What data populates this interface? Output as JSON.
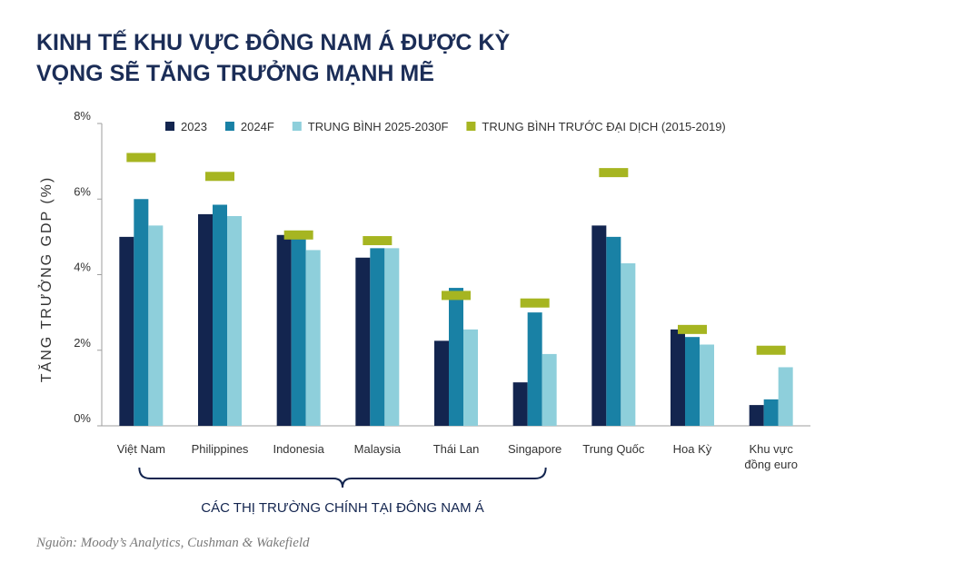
{
  "title": {
    "line1": "KINH TẾ KHU VỰC ĐÔNG NAM Á ĐƯỢC KỲ",
    "line2": "VỌNG SẼ TĂNG TRƯỞNG MẠNH MẼ"
  },
  "source": "Nguồn: Moody’s Analytics, Cushman & Wakefield",
  "bracket_label": "CÁC THỊ TRƯỜNG CHÍNH TẠI ĐÔNG NAM Á",
  "colors": {
    "s2023": "#13254f",
    "s2024": "#1981a5",
    "savg": "#8ecfdb",
    "spre": "#a6b521",
    "axis": "#9e9e9e",
    "text": "#333333",
    "title": "#1b2d57"
  },
  "chart_data": {
    "type": "bar",
    "title": "KINH TẾ KHU VỰC ĐÔNG NAM Á ĐƯỢC KỲ VỌNG SẼ TĂNG TRƯỞNG MẠNH MẼ",
    "xlabel": "",
    "ylabel": "TĂNG TRƯỞNG GDP (%)",
    "ylim": [
      0,
      8
    ],
    "yticks": [
      "0%",
      "2%",
      "4%",
      "6%",
      "8%"
    ],
    "grid": false,
    "legend_position": "top",
    "categories": [
      [
        "Việt Nam"
      ],
      [
        "Philippines"
      ],
      [
        "Indonesia"
      ],
      [
        "Malaysia"
      ],
      [
        "Thái Lan"
      ],
      [
        "Singapore"
      ],
      [
        "Trung Quốc"
      ],
      [
        "Hoa Kỳ"
      ],
      [
        "Khu vực",
        "đồng euro"
      ]
    ],
    "series": [
      {
        "name": "2023",
        "mark": "bar",
        "values": [
          5.0,
          5.6,
          5.05,
          4.45,
          2.25,
          1.15,
          5.3,
          2.55,
          0.55
        ]
      },
      {
        "name": "2024F",
        "mark": "bar",
        "values": [
          6.0,
          5.85,
          5.0,
          4.7,
          3.65,
          3.0,
          5.0,
          2.35,
          0.7
        ]
      },
      {
        "name": "TRUNG BÌNH 2025-2030F",
        "mark": "bar",
        "values": [
          5.3,
          5.55,
          4.65,
          4.7,
          2.55,
          1.9,
          4.3,
          2.15,
          1.55
        ]
      },
      {
        "name": "TRUNG BÌNH TRƯỚC ĐẠI DỊCH (2015-2019)",
        "mark": "dash",
        "values": [
          7.1,
          6.6,
          5.05,
          4.9,
          3.45,
          3.25,
          6.7,
          2.55,
          2.0
        ]
      }
    ],
    "bracket": {
      "label": "CÁC THỊ TRƯỜNG CHÍNH TẠI ĐÔNG NAM Á",
      "from": 0,
      "to": 5
    }
  }
}
